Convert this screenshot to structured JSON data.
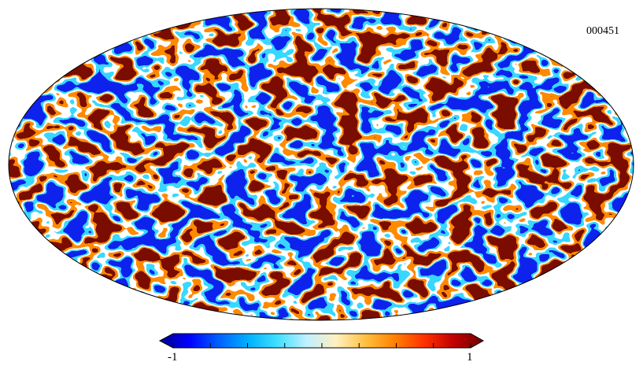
{
  "map_id": "000451",
  "projection": "mollweide",
  "colorbar": {
    "min_label": "-1",
    "max_label": "1",
    "min": -1,
    "max": 1,
    "ticks": [
      -1,
      -0.75,
      -0.5,
      -0.25,
      0,
      0.25,
      0.5,
      0.75,
      1
    ],
    "colormap": "jet",
    "colors": [
      "#00008f",
      "#0000ff",
      "#0060ff",
      "#00b0ff",
      "#40e0ff",
      "#c0f0ff",
      "#fff0c0",
      "#ffc040",
      "#ff8000",
      "#ff3000",
      "#c00000",
      "#700000"
    ]
  },
  "field_colors": {
    "low": "#0f22ec",
    "high": "#7a0c04",
    "mid_high": "#ff8a00",
    "mid_low": "#39d7ff",
    "edge": "#ffffff"
  }
}
